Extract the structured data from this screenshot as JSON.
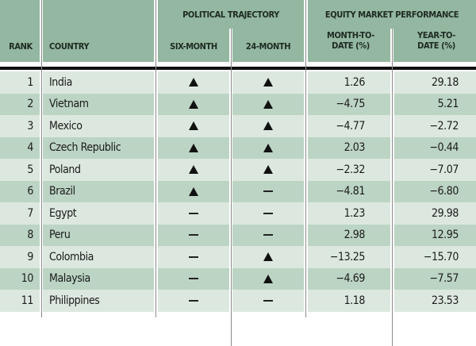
{
  "header": {
    "rank": "RANK",
    "country": "COUNTRY",
    "political": "POLITICAL TRAJECTORY",
    "six_month": "SIX-MONTH",
    "twentyfour_month": "24-MONTH",
    "equity": "EQUITY MARKET PERFORMANCE",
    "mtd": "MONTH-TO-DATE (%)",
    "ytd": "YEAR-TO-DATE (%)"
  },
  "colors": {
    "header_bg": "#93b7a0",
    "row_light": "#dce8df",
    "row_dark": "#bcd4c4"
  },
  "rows": [
    {
      "rank": "1",
      "country": "India",
      "six": "up",
      "m24": "up",
      "mtd": "1.26",
      "ytd": "29.18"
    },
    {
      "rank": "2",
      "country": "Vietnam",
      "six": "up",
      "m24": "up",
      "mtd": "−4.75",
      "ytd": "5.21"
    },
    {
      "rank": "3",
      "country": "Mexico",
      "six": "up",
      "m24": "up",
      "mtd": "−4.77",
      "ytd": "−2.72"
    },
    {
      "rank": "4",
      "country": "Czech Republic",
      "six": "up",
      "m24": "up",
      "mtd": "2.03",
      "ytd": "−0.44"
    },
    {
      "rank": "5",
      "country": "Poland",
      "six": "up",
      "m24": "up",
      "mtd": "−2.32",
      "ytd": "−7.07"
    },
    {
      "rank": "6",
      "country": "Brazil",
      "six": "up",
      "m24": "flat",
      "mtd": "−4.81",
      "ytd": "−6.80"
    },
    {
      "rank": "7",
      "country": "Egypt",
      "six": "flat",
      "m24": "flat",
      "mtd": "1.23",
      "ytd": "29.98"
    },
    {
      "rank": "8",
      "country": "Peru",
      "six": "flat",
      "m24": "flat",
      "mtd": "2.98",
      "ytd": "12.95"
    },
    {
      "rank": "9",
      "country": "Colombia",
      "six": "flat",
      "m24": "up",
      "mtd": "−13.25",
      "ytd": "−15.70"
    },
    {
      "rank": "10",
      "country": "Malaysia",
      "six": "flat",
      "m24": "up",
      "mtd": "−4.69",
      "ytd": "−7.57"
    },
    {
      "rank": "11",
      "country": "Philippines",
      "six": "flat",
      "m24": "flat",
      "mtd": "1.18",
      "ytd": "23.53"
    }
  ]
}
